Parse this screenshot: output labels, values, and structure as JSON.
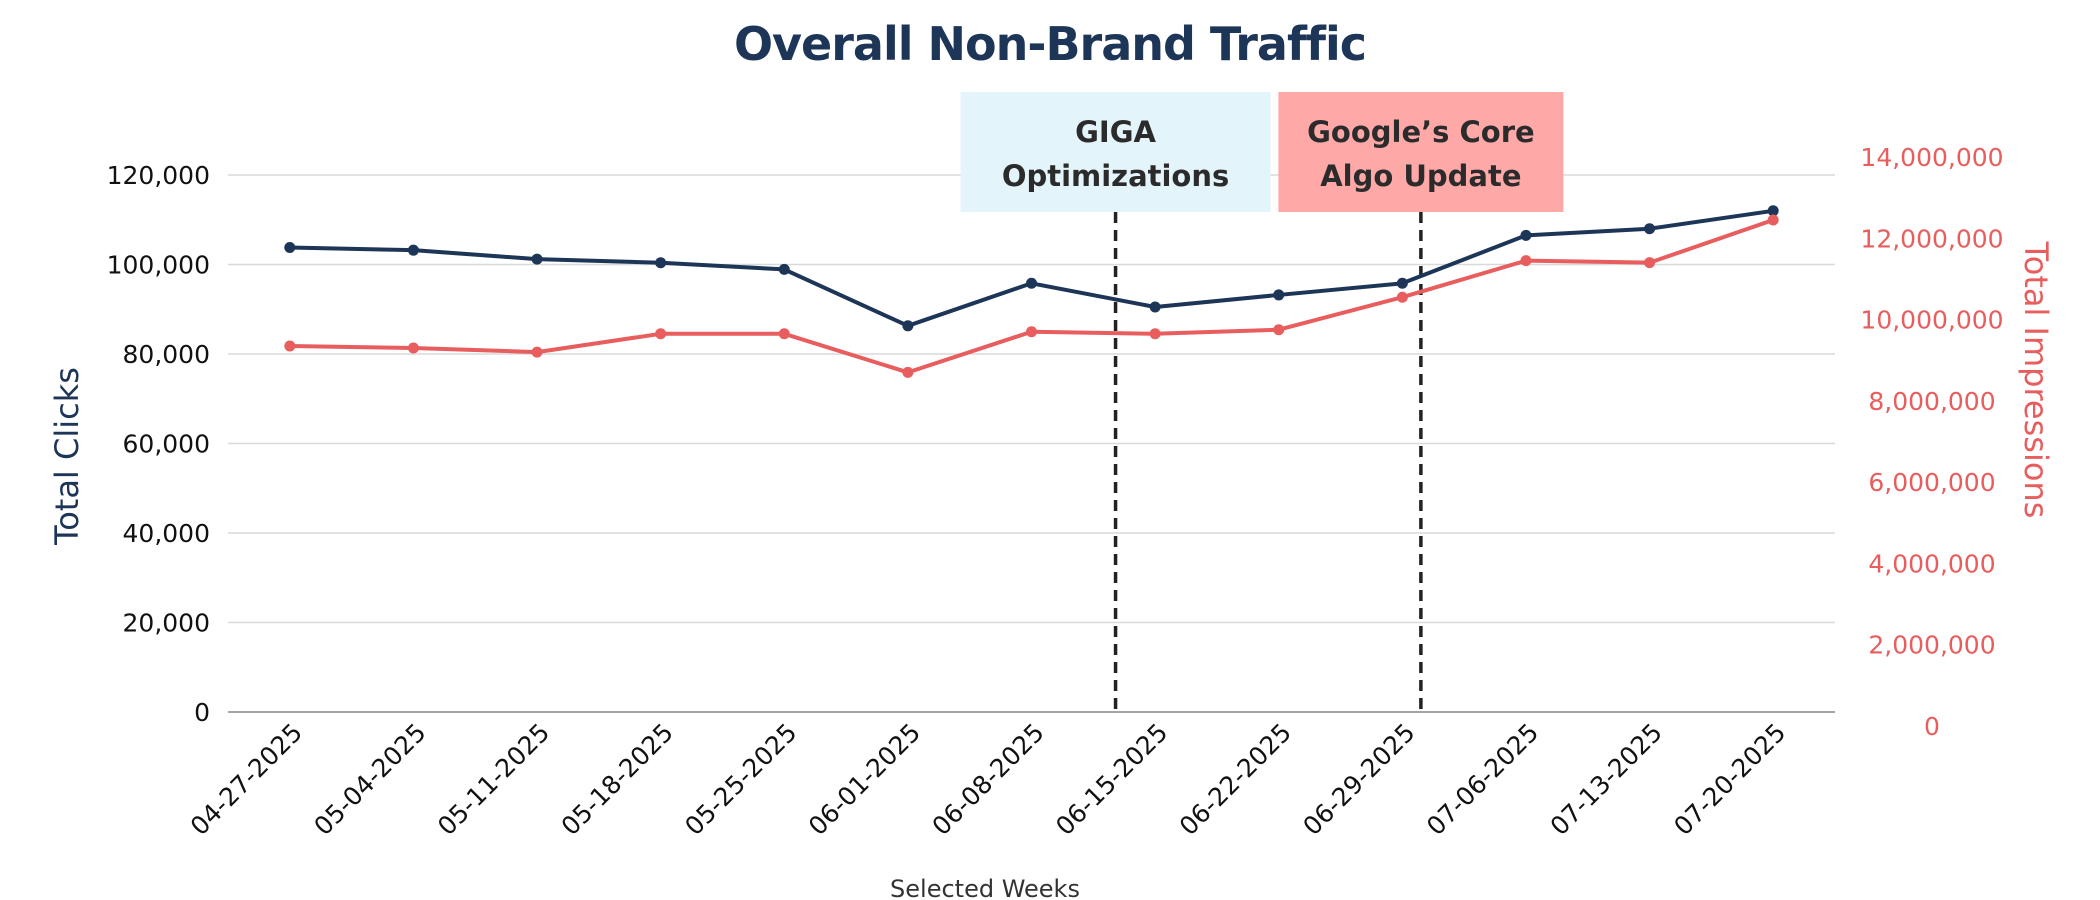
{
  "chart_data": {
    "type": "line",
    "title": "Overall Non-Brand Traffic",
    "xlabel": "Selected Weeks",
    "ylabel_left": "Total Clicks",
    "ylabel_right": "Total Impressions",
    "categories": [
      "04-27-2025",
      "05-04-2025",
      "05-11-2025",
      "05-18-2025",
      "05-25-2025",
      "06-01-2025",
      "06-08-2025",
      "06-15-2025",
      "06-22-2025",
      "06-29-2025",
      "07-06-2025",
      "07-13-2025",
      "07-20-2025"
    ],
    "series": [
      {
        "name": "Total Clicks",
        "axis": "left",
        "color": "#1d3557",
        "values": [
          103800,
          103200,
          101200,
          100400,
          98900,
          86300,
          95800,
          90500,
          93200,
          95800,
          106500,
          108000,
          112000
        ]
      },
      {
        "name": "Total Impressions",
        "axis": "right",
        "color": "#e85d5d",
        "values": [
          9350000,
          9300000,
          9200000,
          9650000,
          9650000,
          8700000,
          9700000,
          9650000,
          9750000,
          10550000,
          11450000,
          11400000,
          12450000
        ]
      }
    ],
    "ylim_left": [
      0,
      120000
    ],
    "yticks_left": [
      "0",
      "20,000",
      "40,000",
      "60,000",
      "80,000",
      "100,000",
      "120,000"
    ],
    "ylim_right": [
      0,
      14000000
    ],
    "yticks_right": [
      "0",
      "2,000,000",
      "4,000,000",
      "6,000,000",
      "8,000,000",
      "10,000,000",
      "12,000,000",
      "14,000,000"
    ],
    "grid": true,
    "annotations": [
      {
        "label_lines": [
          "GIGA",
          "Optimizations"
        ],
        "after_category": "06-08-2025",
        "fraction": 0.68,
        "fill": "#e3f4fb"
      },
      {
        "label_lines": [
          "Google’s Core",
          "Algo Update"
        ],
        "after_category": "06-29-2025",
        "fraction": 0.15,
        "fill": "#ffa8a8"
      }
    ],
    "colors": {
      "title": "#1d3557",
      "left_axis_title": "#1d3557",
      "right_axis": "#e85d5d",
      "tick": "#111111",
      "grid": "#d9d9d9",
      "vline": "#222222"
    }
  }
}
